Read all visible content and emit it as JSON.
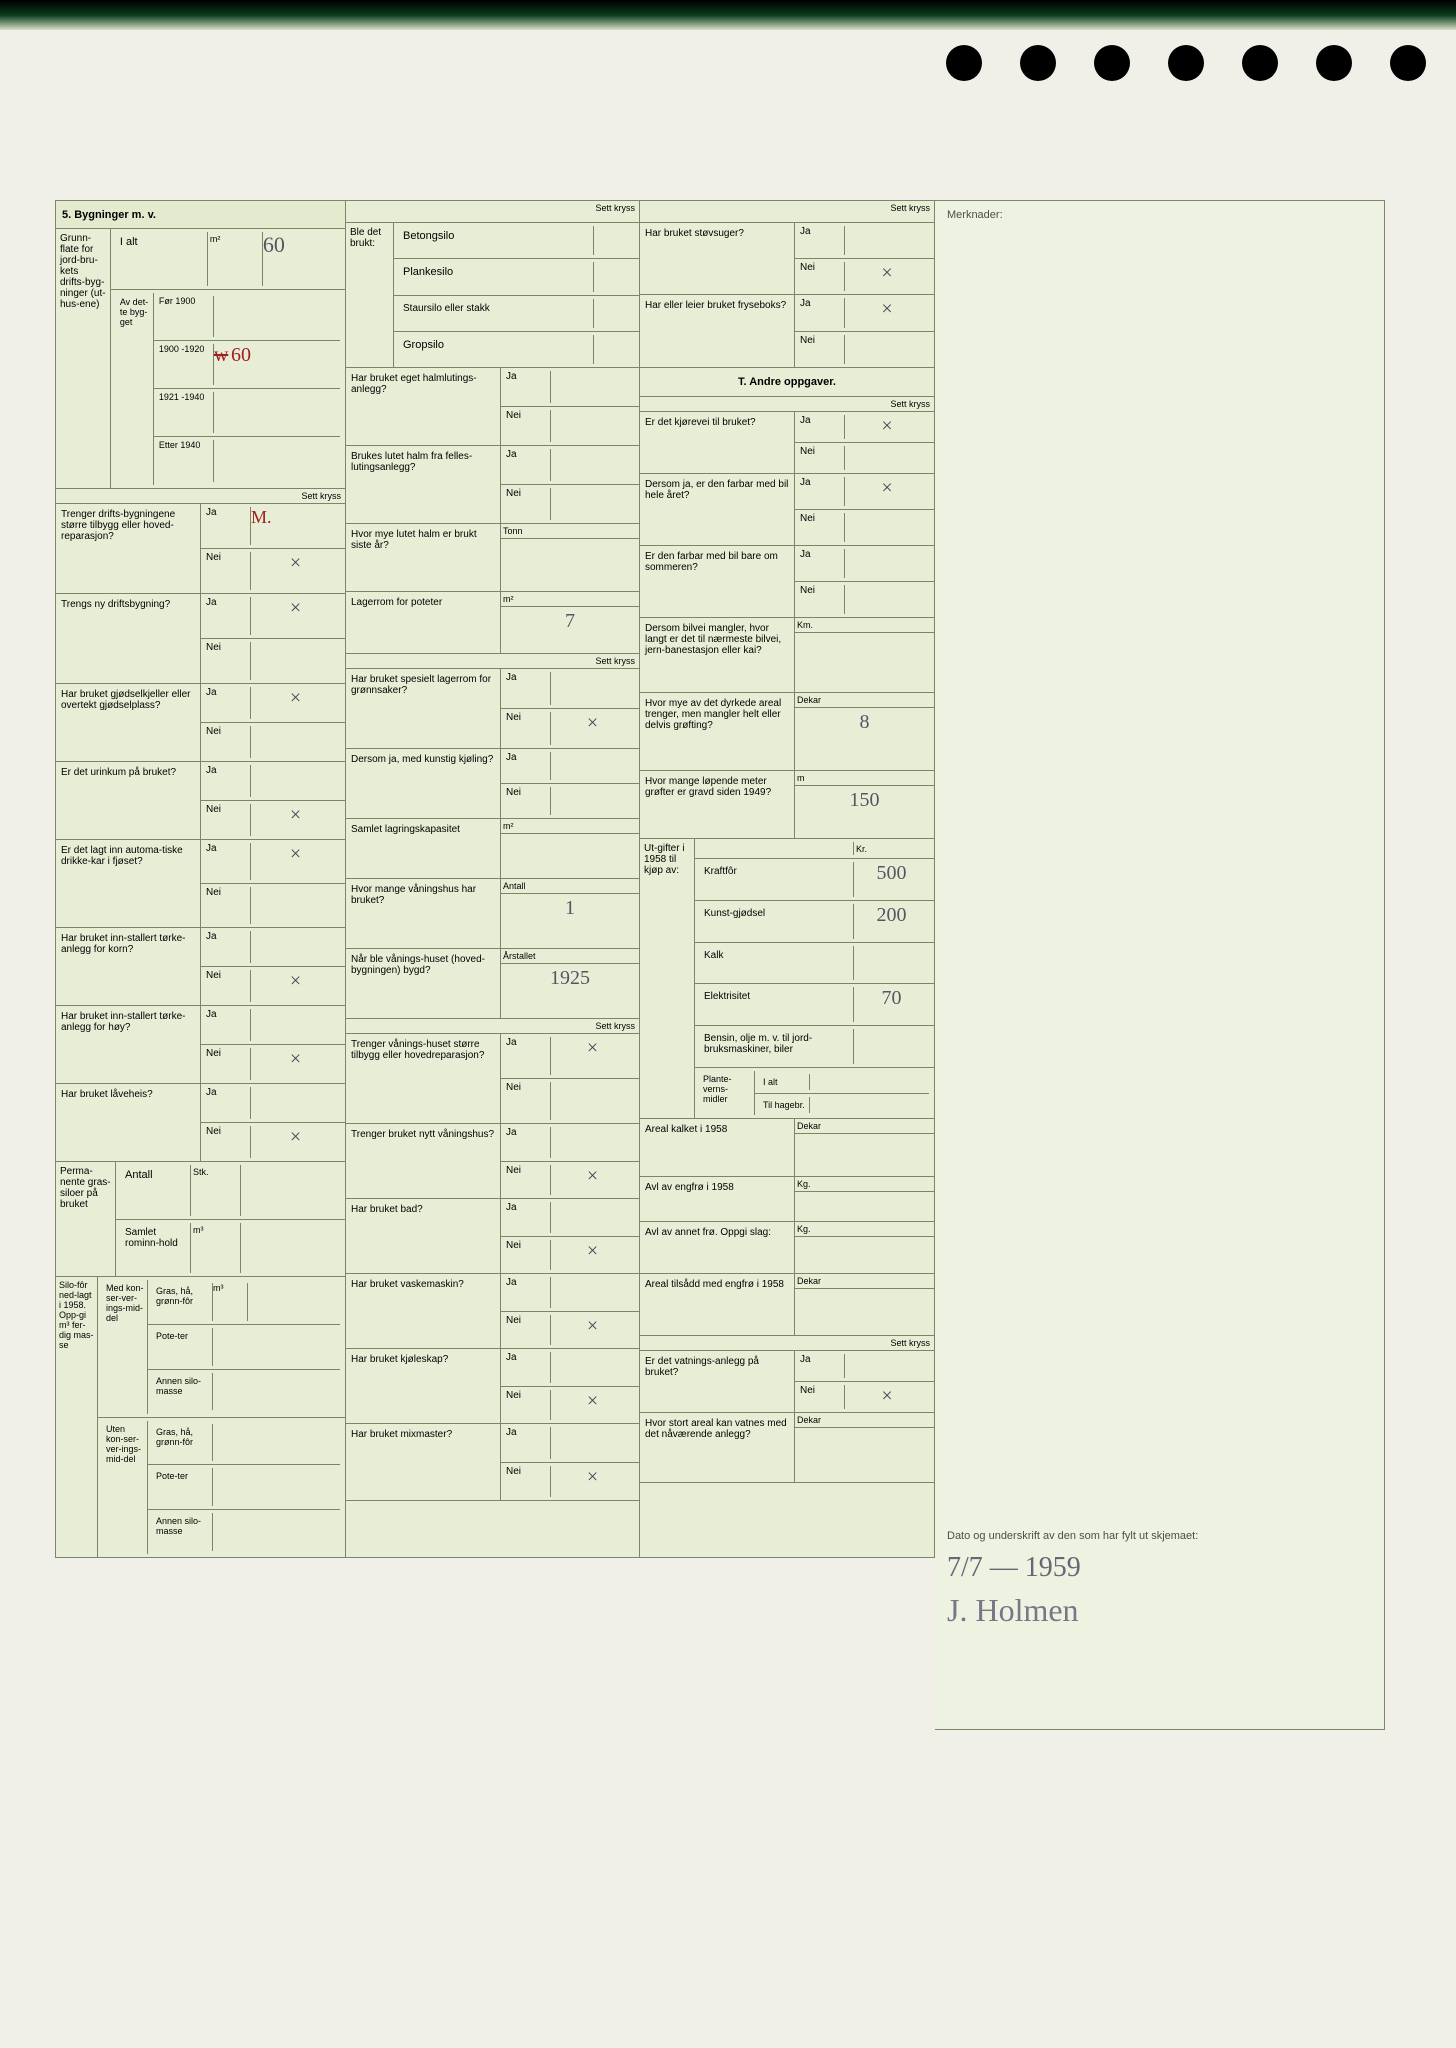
{
  "colors": {
    "paper_bg": "#e8eed6",
    "border": "#7a8668",
    "text": "#3a4030",
    "handwriting": "#556",
    "handwriting_red": "#a02020",
    "page_bg": "#f0efe8"
  },
  "typography": {
    "base_fontsize": 11,
    "small_fontsize": 9,
    "header_weight": "bold",
    "handwriting_family": "Comic Sans MS, cursive"
  },
  "section5": {
    "title": "5. Bygninger m. v.",
    "grunnflate": {
      "label": "Grunn-flate for jord-bru-kets drifts-byg-ninger (ut-hus-ene)",
      "i_alt_label": "I alt",
      "i_alt_value": "60",
      "unit": "m²",
      "av_label": "Av det-te byg-get",
      "periods": [
        {
          "label": "Før 1900",
          "value": ""
        },
        {
          "label": "1900 -1920",
          "value": "60",
          "struck": true
        },
        {
          "label": "1921 -1940",
          "value": ""
        },
        {
          "label": "Etter 1940",
          "value": ""
        }
      ]
    },
    "sett_kryss": "Sett kryss",
    "questions_col1": [
      {
        "q": "Trenger drifts-bygningene større tilbygg eller hoved-reparasjon?",
        "ja": "",
        "ja_red": true,
        "nei": "×"
      },
      {
        "q": "Trengs ny driftsbygning?",
        "ja": "×",
        "nei": ""
      },
      {
        "q": "Har bruket gjødselkjeller eller overtekt gjødselplass?",
        "ja": "×",
        "nei": ""
      },
      {
        "q": "Er det urinkum på bruket?",
        "ja": "",
        "nei": "×"
      },
      {
        "q": "Er det lagt inn automa-tiske drikke-kar i fjøset?",
        "ja": "×",
        "nei": ""
      },
      {
        "q": "Har bruket inn-stallert tørke-anlegg for korn?",
        "ja": "",
        "nei": "×"
      },
      {
        "q": "Har bruket inn-stallert tørke-anlegg for høy?",
        "ja": "",
        "nei": "×"
      },
      {
        "q": "Har bruket låveheis?",
        "ja": "",
        "nei": "×"
      }
    ],
    "perm_siloer": {
      "label": "Perma-nente gras-siloer på bruket",
      "antall_label": "Antall",
      "antall_unit": "Stk.",
      "samlet_label": "Samlet rominn-hold",
      "samlet_unit": "m³"
    },
    "silofor": {
      "label": "Silo-fôr ned-lagt i 1958. Opp-gi m³ fer-dig mas-se",
      "med_label": "Med kon-ser-ver-ings-mid-del",
      "uten_label": "Uten kon-ser-ver-ings-mid-del",
      "rows": [
        "Gras, hå, grønn-fôr",
        "Pote-ter",
        "Annen silo-masse"
      ],
      "unit": "m³"
    }
  },
  "col2": {
    "ble_brukt_label": "Ble det brukt:",
    "silo_types": [
      "Betongsilo",
      "Plankesilo",
      "Staursilo eller stakk",
      "Gropsilo"
    ],
    "sett_kryss": "Sett kryss",
    "halmluting": {
      "q": "Har bruket eget halmlutings-anlegg?",
      "ja": "",
      "nei": ""
    },
    "felles_luting": {
      "q": "Brukes lutet halm fra felles-lutingsanlegg?",
      "ja": "",
      "nei": ""
    },
    "lutet_halm": {
      "q": "Hvor mye lutet halm er brukt siste år?",
      "unit": "Tonn",
      "value": ""
    },
    "lager_potet": {
      "q": "Lagerrom for poteter",
      "unit": "m²",
      "value": "7"
    },
    "lager_gronn": {
      "q": "Har bruket spesielt lagerrom for grønnsaker?",
      "ja": "",
      "nei": "×"
    },
    "kjoling": {
      "q": "Dersom ja, med kunstig kjøling?",
      "ja": "",
      "nei": ""
    },
    "samlet_lager": {
      "q": "Samlet lagringskapasitet",
      "unit": "m²",
      "value": ""
    },
    "vaningshus": {
      "q": "Hvor mange våningshus har bruket?",
      "unit": "Antall",
      "value": "1"
    },
    "vaning_bygd": {
      "q": "Når ble vånings-huset (hoved-bygningen) bygd?",
      "unit": "Årstallet",
      "value": "1925"
    },
    "vaning_rep": {
      "q": "Trenger vånings-huset større tilbygg eller hovedreparasjon?",
      "ja": "×",
      "nei": ""
    },
    "nytt_vaning": {
      "q": "Trenger bruket nytt våningshus?",
      "ja": "",
      "nei": "×"
    },
    "bad": {
      "q": "Har bruket bad?",
      "ja": "",
      "nei": "×"
    },
    "vaskemaskin": {
      "q": "Har bruket vaskemaskin?",
      "ja": "",
      "nei": "×"
    },
    "kjoleskap": {
      "q": "Har bruket kjøleskap?",
      "ja": "",
      "nei": "×"
    },
    "mixmaster": {
      "q": "Har bruket mixmaster?",
      "ja": "",
      "nei": "×"
    }
  },
  "col3": {
    "stovsuger": {
      "q": "Har bruket støvsuger?",
      "ja": "",
      "nei": "×"
    },
    "fryseboks": {
      "q": "Har eller leier bruket fryseboks?",
      "ja": "×",
      "nei": ""
    },
    "section_t_title": "T. Andre oppgaver.",
    "kjorevei": {
      "q": "Er det kjørevei til bruket?",
      "ja": "×",
      "nei": ""
    },
    "farbar_aar": {
      "q": "Dersom ja, er den farbar med bil hele året?",
      "ja": "×",
      "nei": ""
    },
    "farbar_sommer": {
      "q": "Er den farbar med bil bare om sommeren?",
      "ja": "",
      "nei": ""
    },
    "bilvei_mangler": {
      "q": "Dersom bilvei mangler, hvor langt er det til nærmeste bilvei, jern-banestasjon eller kai?",
      "unit": "Km.",
      "value": ""
    },
    "grofting": {
      "q": "Hvor mye av det dyrkede areal trenger, men mangler helt eller delvis grøfting?",
      "unit": "Dekar",
      "value": "8"
    },
    "grofter_1949": {
      "q": "Hvor mange løpende meter grøfter er gravd siden 1949?",
      "unit": "m",
      "value": "150"
    },
    "utgifter": {
      "label": "Ut-gifter i 1958 til kjøp av:",
      "unit": "Kr.",
      "rows": [
        {
          "label": "Kraftfôr",
          "value": "500"
        },
        {
          "label": "Kunst-gjødsel",
          "value": "200"
        },
        {
          "label": "Kalk",
          "value": ""
        },
        {
          "label": "Elektrisitet",
          "value": "70"
        },
        {
          "label": "Bensin, olje m. v. til jord-bruksmaskiner, biler",
          "value": ""
        }
      ],
      "plantevern": {
        "label": "Plante-verns-midler",
        "i_alt": "I alt",
        "hagebruk": "Til hagebr."
      }
    },
    "areal_kalket": {
      "q": "Areal kalket i 1958",
      "unit": "Dekar",
      "value": ""
    },
    "avl_engfro": {
      "q": "Avl av engfrø i 1958",
      "unit": "Kg.",
      "value": ""
    },
    "avl_annet": {
      "q": "Avl av annet frø. Oppgi slag:",
      "unit": "Kg.",
      "value": ""
    },
    "tilsadd": {
      "q": "Areal tilsådd med engfrø i 1958",
      "unit": "Dekar",
      "value": ""
    },
    "vatning": {
      "q": "Er det vatnings-anlegg på bruket?",
      "ja": "",
      "nei": "×"
    },
    "vatning_areal": {
      "q": "Hvor stort areal kan vatnes med det nåværende anlegg?",
      "unit": "Dekar",
      "value": ""
    }
  },
  "merknader": {
    "label": "Merknader:",
    "sig_label": "Dato og underskrift av den som har fylt ut skjemaet:",
    "date": "7/7 — 1959",
    "name": "J. Holmen"
  }
}
